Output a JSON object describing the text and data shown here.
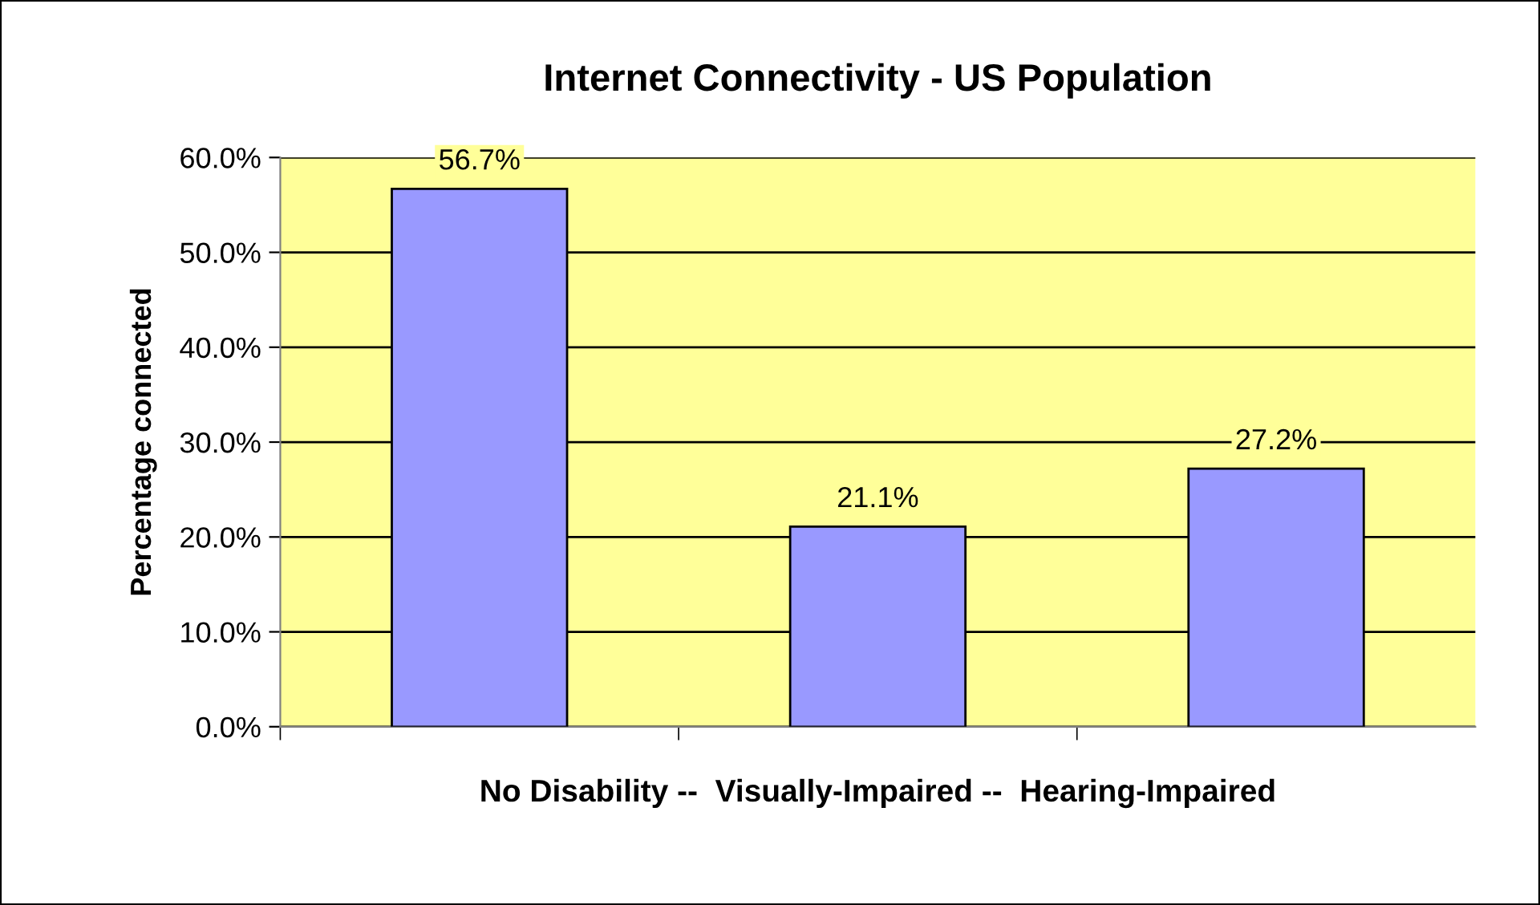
{
  "chart_data": {
    "type": "bar",
    "title": "Internet Connectivity - US Population",
    "xlabel": "No Disability --  Visually-Impaired --  Hearing-Impaired",
    "ylabel": "Percentage connected",
    "categories": [
      null,
      null,
      null
    ],
    "series": [
      {
        "color": "#9999ff",
        "values": [
          56.7,
          21.1,
          27.2
        ],
        "value_labels": [
          "56.7%",
          "21.1%",
          "27.2%"
        ]
      }
    ],
    "ylim": [
      0,
      60
    ],
    "yticks": [
      {
        "value": 0,
        "label": "0.0%"
      },
      {
        "value": 10,
        "label": "10.0%"
      },
      {
        "value": 20,
        "label": "20.0%"
      },
      {
        "value": 30,
        "label": "30.0%"
      },
      {
        "value": 40,
        "label": "40.0%"
      },
      {
        "value": 50,
        "label": "50.0%"
      },
      {
        "value": 60,
        "label": "60.0%"
      }
    ],
    "grid": "y",
    "legend": false
  }
}
